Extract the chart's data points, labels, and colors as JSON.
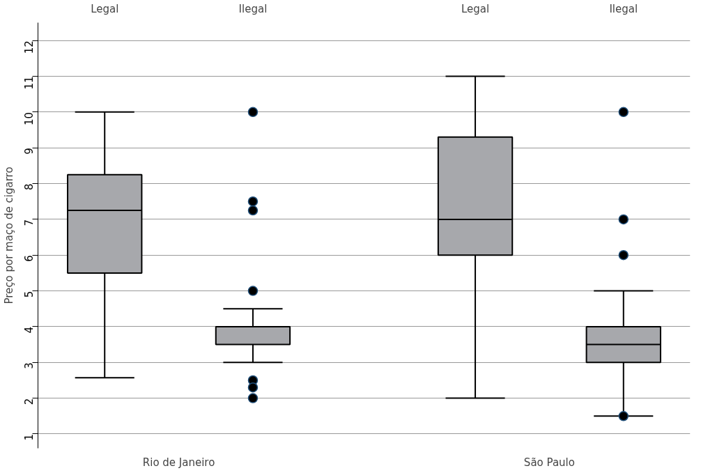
{
  "chart_data": {
    "type": "box",
    "ylabel": "Preço por maço de cigarro",
    "categories": [
      "Legal",
      "Ilegal",
      "Legal",
      "Ilegal"
    ],
    "boxes": [
      {
        "low": 2.57,
        "q1": 5.5,
        "median": 7.25,
        "q3": 8.25,
        "high": 10
      },
      {
        "low": 3,
        "q1": 3.5,
        "median": 4,
        "q3": 4,
        "high": 4.5,
        "outliers": [
          10,
          7.5,
          7.25,
          5,
          2.5,
          2.3,
          2
        ]
      },
      {
        "low": 2,
        "q1": 6,
        "median": 7,
        "q3": 9.3,
        "high": 11
      },
      {
        "low": 1.5,
        "q1": 3,
        "median": 3.5,
        "q3": 4,
        "high": 5,
        "outliers": [
          10,
          7,
          6,
          1.5
        ]
      }
    ],
    "color": "#a7a8ac",
    "ylim": [
      0.6,
      12.5
    ],
    "yticks": [
      1,
      2,
      3,
      4,
      5,
      6,
      7,
      8,
      9,
      10,
      11,
      12
    ],
    "grid": "y",
    "annotations": [
      "Rio de Janeiro",
      "São Paulo"
    ]
  }
}
